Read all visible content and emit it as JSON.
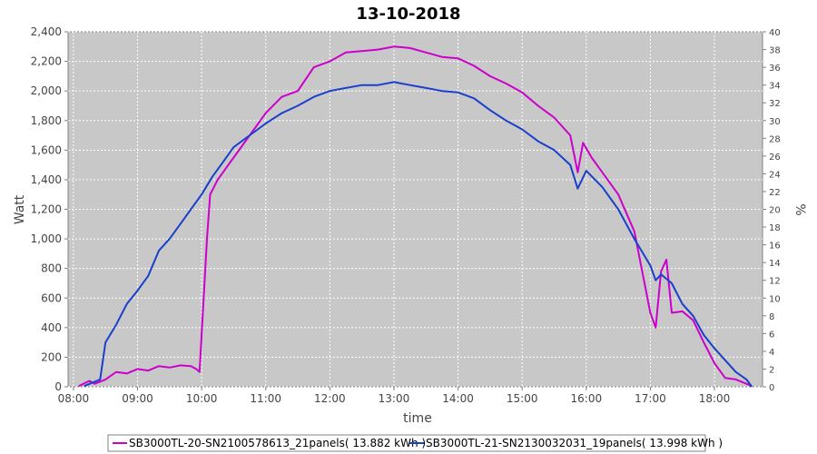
{
  "chart_data": {
    "type": "line",
    "title": "13-10-2018",
    "xlabel": "time",
    "ylabel": "Watt",
    "ylabel_right": "%",
    "xlim": [
      "07:55",
      "18:45"
    ],
    "ylim": [
      0,
      2400
    ],
    "ylim_right": [
      0,
      40
    ],
    "x_ticks": [
      "08:00",
      "09:00",
      "10:00",
      "11:00",
      "12:00",
      "13:00",
      "14:00",
      "15:00",
      "16:00",
      "17:00",
      "18:00"
    ],
    "y_ticks": [
      "0",
      "200",
      "400",
      "600",
      "800",
      "1,000",
      "1,200",
      "1,400",
      "1,600",
      "1,800",
      "2,000",
      "2,200",
      "2,400"
    ],
    "y_ticks_right": [
      "0",
      "2",
      "4",
      "6",
      "8",
      "10",
      "12",
      "14",
      "16",
      "18",
      "20",
      "22",
      "24",
      "26",
      "28",
      "30",
      "32",
      "34",
      "36",
      "38",
      "40"
    ],
    "grid": true,
    "legend_position": "bottom",
    "series": [
      {
        "name": "SB3000TL-20-SN2100578613_21panels( 13.882 kWh )",
        "color": "#cc00cc",
        "x": [
          "08:05",
          "08:15",
          "08:20",
          "08:30",
          "08:40",
          "08:50",
          "09:00",
          "09:10",
          "09:20",
          "09:30",
          "09:40",
          "09:50",
          "09:55",
          "09:58",
          "10:05",
          "10:08",
          "10:15",
          "10:30",
          "10:45",
          "11:00",
          "11:15",
          "11:30",
          "11:45",
          "12:00",
          "12:15",
          "12:30",
          "12:45",
          "13:00",
          "13:15",
          "13:30",
          "13:45",
          "14:00",
          "14:15",
          "14:30",
          "14:45",
          "15:00",
          "15:15",
          "15:30",
          "15:45",
          "15:52",
          "15:57",
          "16:05",
          "16:15",
          "16:30",
          "16:45",
          "17:00",
          "17:05",
          "17:10",
          "17:15",
          "17:20",
          "17:30",
          "17:40",
          "17:50",
          "18:00",
          "18:10",
          "18:20",
          "18:30",
          "18:35"
        ],
        "values": [
          5,
          40,
          20,
          50,
          100,
          90,
          120,
          110,
          140,
          130,
          145,
          140,
          120,
          100,
          1000,
          1300,
          1400,
          1550,
          1700,
          1850,
          1960,
          2000,
          2160,
          2200,
          2260,
          2270,
          2280,
          2300,
          2290,
          2260,
          2230,
          2220,
          2170,
          2100,
          2050,
          1990,
          1900,
          1820,
          1700,
          1450,
          1650,
          1550,
          1450,
          1300,
          1050,
          500,
          400,
          780,
          860,
          500,
          510,
          450,
          300,
          160,
          60,
          50,
          20,
          5
        ]
      },
      {
        "name": "SB3000TL-21-SN2130032031_19panels( 13.998 kWh )",
        "color": "#1a3fcc",
        "x": [
          "08:10",
          "08:25",
          "08:30",
          "08:40",
          "08:50",
          "09:00",
          "09:10",
          "09:20",
          "09:30",
          "09:40",
          "09:50",
          "10:00",
          "10:10",
          "10:20",
          "10:30",
          "10:45",
          "11:00",
          "11:15",
          "11:30",
          "11:45",
          "12:00",
          "12:15",
          "12:30",
          "12:45",
          "13:00",
          "13:15",
          "13:30",
          "13:45",
          "14:00",
          "14:15",
          "14:30",
          "14:45",
          "15:00",
          "15:15",
          "15:30",
          "15:45",
          "15:52",
          "16:00",
          "16:15",
          "16:30",
          "16:45",
          "17:00",
          "17:05",
          "17:10",
          "17:20",
          "17:30",
          "17:40",
          "17:50",
          "18:00",
          "18:10",
          "18:20",
          "18:30",
          "18:35"
        ],
        "values": [
          5,
          50,
          300,
          420,
          560,
          650,
          750,
          920,
          1000,
          1100,
          1200,
          1300,
          1420,
          1520,
          1620,
          1700,
          1780,
          1850,
          1900,
          1960,
          2000,
          2020,
          2040,
          2040,
          2060,
          2040,
          2020,
          2000,
          1990,
          1950,
          1870,
          1800,
          1740,
          1660,
          1600,
          1500,
          1340,
          1460,
          1350,
          1200,
          1000,
          820,
          720,
          760,
          700,
          560,
          480,
          350,
          260,
          180,
          100,
          50,
          0
        ]
      }
    ]
  }
}
